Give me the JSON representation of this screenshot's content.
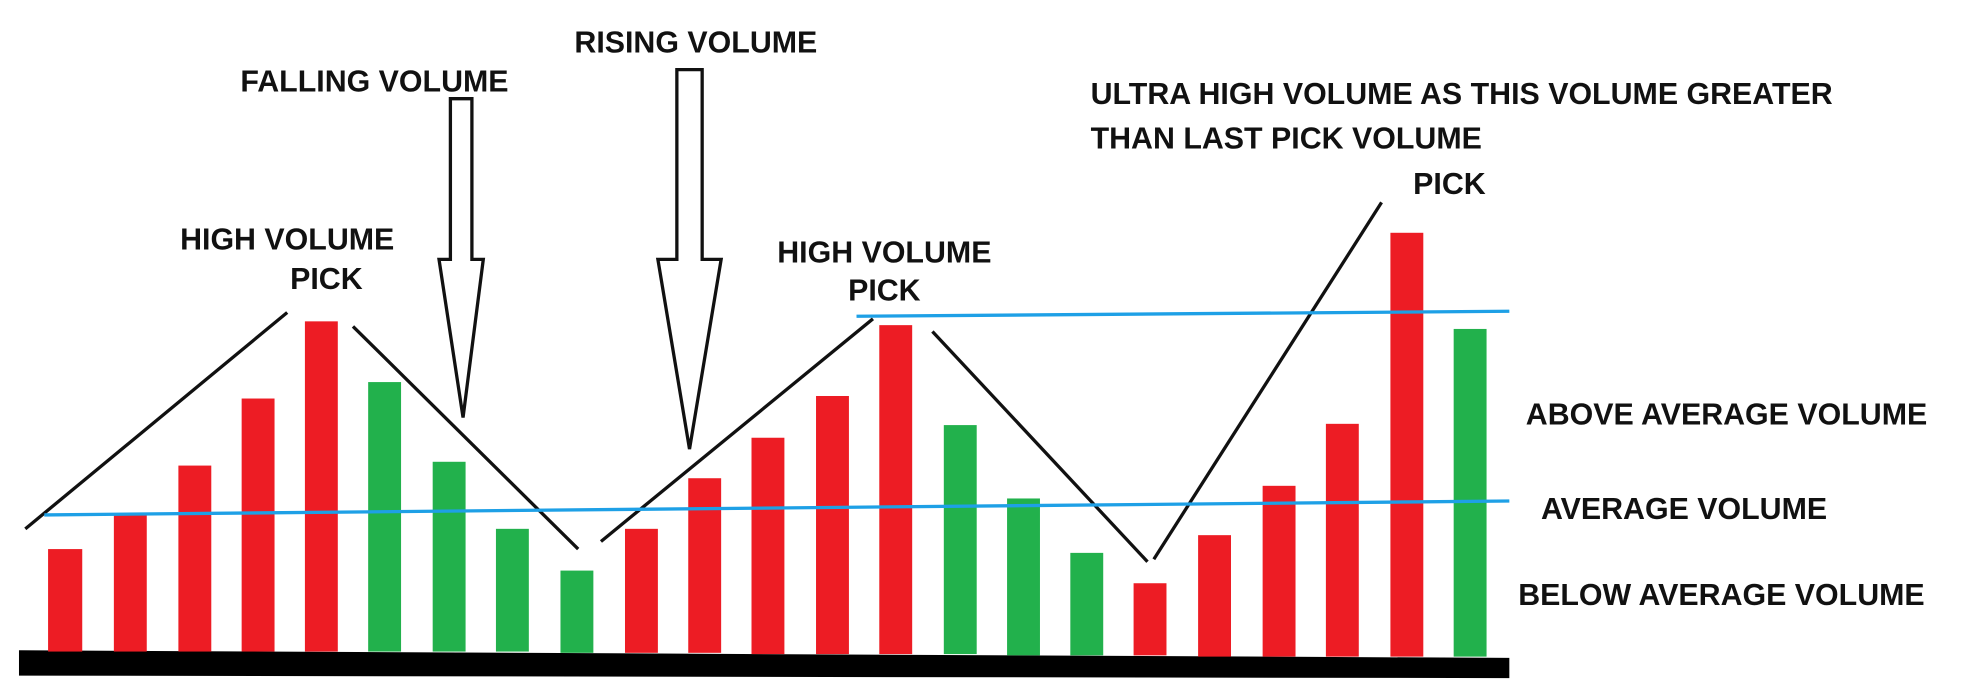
{
  "annotations": {
    "falling": "FALLING VOLUME",
    "rising": "RISING VOLUME",
    "peak1": [
      "HIGH VOLUME",
      "PICK"
    ],
    "peak2": [
      "HIGH VOLUME",
      "PICK"
    ],
    "ultra": [
      "ULTRA HIGH VOLUME AS THIS VOLUME GREATER",
      "THAN LAST PICK VOLUME",
      "PICK"
    ]
  },
  "levels": [
    "ABOVE AVERAGE VOLUME",
    "AVERAGE VOLUME",
    "BELOW AVERAGE VOLUME"
  ]
}
